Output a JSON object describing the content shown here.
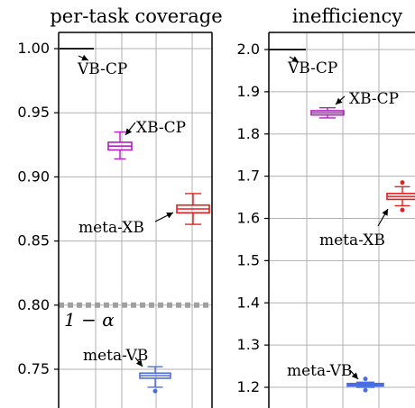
{
  "chart_data": [
    {
      "type": "box",
      "title": "per-task coverage",
      "xlabel": "",
      "ylabel": "",
      "ylim": [
        0.725,
        1.02
      ],
      "yticks": [
        0.75,
        0.8,
        0.85,
        0.9,
        0.95,
        1.0
      ],
      "ytick_labels": [
        "0.75",
        "0.80",
        "0.85",
        "0.90",
        "0.95",
        "1.00"
      ],
      "grid": true,
      "reference_line": {
        "value": 0.8,
        "label": "1 − α",
        "color": "#a0a0a0",
        "style": "dashed"
      },
      "series": [
        {
          "name": "VB-CP",
          "color": "#000000",
          "position": 1,
          "q1": 1.0,
          "median": 1.0,
          "q3": 1.0,
          "whisker_low": 1.0,
          "whisker_high": 1.0,
          "outliers": [],
          "annotation": "VB-CP"
        },
        {
          "name": "XB-CP",
          "color": "#b020c0",
          "position": 3,
          "q1": 0.921,
          "median": 0.924,
          "q3": 0.927,
          "whisker_low": 0.914,
          "whisker_high": 0.935,
          "outliers": [],
          "annotation": "XB-CP"
        },
        {
          "name": "meta-XB",
          "color": "#e02020",
          "position": 5,
          "q1": 0.872,
          "median": 0.875,
          "q3": 0.878,
          "whisker_low": 0.863,
          "whisker_high": 0.887,
          "outliers": [],
          "annotation": "meta-XB"
        },
        {
          "name": "meta-VB",
          "color": "#4a6ee0",
          "position": 4,
          "q1": 0.743,
          "median": 0.745,
          "q3": 0.747,
          "whisker_low": 0.736,
          "whisker_high": 0.752,
          "outliers": [
            0.733
          ],
          "annotation": "meta-VB"
        }
      ]
    },
    {
      "type": "box",
      "title": "inefficiency",
      "xlabel": "",
      "ylabel": "",
      "ylim": [
        1.15,
        2.02
      ],
      "yticks": [
        1.2,
        1.3,
        1.4,
        1.5,
        1.6,
        1.7,
        1.8,
        1.9,
        2.0
      ],
      "ytick_labels": [
        "1.2",
        "1.3",
        "1.4",
        "1.5",
        "1.6",
        "1.7",
        "1.8",
        "1.9",
        "2.0"
      ],
      "grid": true,
      "series": [
        {
          "name": "VB-CP",
          "color": "#000000",
          "position": 1,
          "q1": 2.0,
          "median": 2.0,
          "q3": 2.0,
          "whisker_low": 2.0,
          "whisker_high": 2.0,
          "outliers": [],
          "annotation": "VB-CP"
        },
        {
          "name": "XB-CP",
          "color": "#b020c0",
          "position": 3,
          "q1": 1.845,
          "median": 1.85,
          "q3": 1.855,
          "whisker_low": 1.838,
          "whisker_high": 1.862,
          "outliers": [],
          "annotation": "XB-CP"
        },
        {
          "name": "meta-XB",
          "color": "#e02020",
          "position": 5,
          "q1": 1.645,
          "median": 1.652,
          "q3": 1.659,
          "whisker_low": 1.63,
          "whisker_high": 1.675,
          "outliers": [
            1.62,
            1.685
          ],
          "annotation": "meta-XB"
        },
        {
          "name": "meta-VB",
          "color": "#4a6ee0",
          "position": 4,
          "q1": 1.203,
          "median": 1.206,
          "q3": 1.209,
          "whisker_low": 1.2,
          "whisker_high": 1.212,
          "outliers": [
            1.193,
            1.22
          ],
          "annotation": "meta-VB"
        }
      ]
    }
  ]
}
